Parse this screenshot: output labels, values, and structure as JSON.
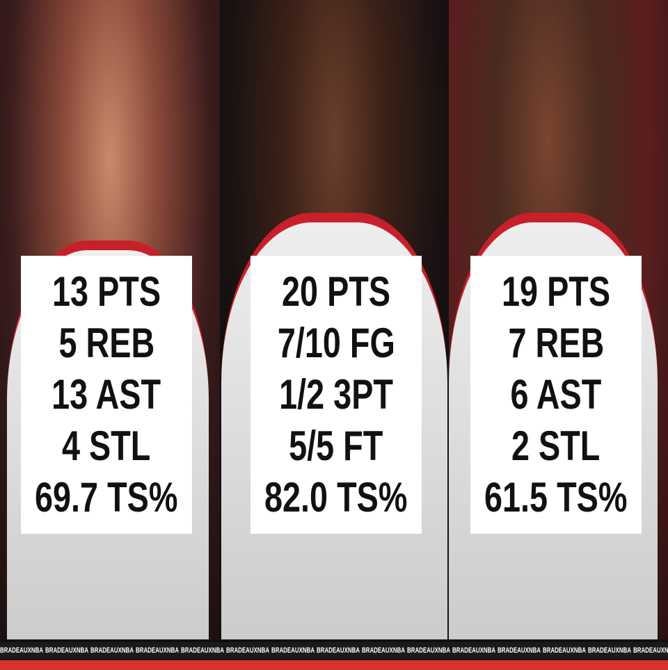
{
  "panels": [
    {
      "stats": [
        "13 PTS",
        "5 REB",
        "13 AST",
        "4 STL",
        "69.7 TS%"
      ]
    },
    {
      "stats": [
        "20 PTS",
        "7/10 FG",
        "1/2 3PT",
        "5/5 FT",
        "82.0 TS%"
      ]
    },
    {
      "stats": [
        "19 PTS",
        "7 REB",
        "6 AST",
        "2 STL",
        "61.5 TS%"
      ]
    }
  ],
  "watermark": "BRADEAUXNBA"
}
